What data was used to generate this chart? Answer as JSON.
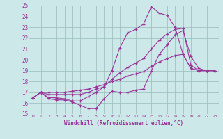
{
  "xlabel": "Windchill (Refroidissement éolien,°C)",
  "bg_color": "#cce8e8",
  "line_color": "#993399",
  "grid_color": "#99bbbb",
  "xlim": [
    -0.5,
    23.5
  ],
  "ylim": [
    15,
    25
  ],
  "yticks": [
    15,
    16,
    17,
    18,
    19,
    20,
    21,
    22,
    23,
    24,
    25
  ],
  "xticks": [
    0,
    1,
    2,
    3,
    4,
    5,
    6,
    7,
    8,
    9,
    10,
    11,
    12,
    13,
    14,
    15,
    16,
    17,
    18,
    19,
    20,
    21,
    22,
    23
  ],
  "line1_x": [
    0,
    1,
    2,
    3,
    4,
    5,
    6,
    7,
    8,
    9,
    10,
    11,
    12,
    13,
    14,
    15,
    16,
    17,
    18,
    19,
    20,
    21,
    22,
    23
  ],
  "line1_y": [
    16.5,
    17.0,
    16.4,
    16.3,
    16.3,
    16.1,
    15.8,
    15.5,
    15.5,
    16.4,
    17.1,
    17.0,
    17.0,
    17.2,
    17.3,
    19.0,
    20.5,
    21.4,
    22.3,
    22.7,
    20.3,
    19.2,
    19.0,
    19.0
  ],
  "line2_x": [
    0,
    1,
    2,
    3,
    4,
    5,
    6,
    7,
    8,
    9,
    10,
    11,
    12,
    13,
    14,
    15,
    16,
    17,
    18,
    19,
    20,
    21,
    22,
    23
  ],
  "line2_y": [
    16.5,
    17.0,
    16.5,
    16.5,
    16.4,
    16.2,
    16.2,
    16.6,
    17.0,
    17.5,
    19.0,
    21.1,
    22.5,
    22.8,
    23.3,
    24.9,
    24.3,
    24.1,
    23.0,
    20.5,
    19.2,
    19.0,
    19.0,
    19.0
  ],
  "line3_x": [
    0,
    1,
    2,
    3,
    4,
    5,
    6,
    7,
    8,
    9,
    10,
    11,
    12,
    13,
    14,
    15,
    16,
    17,
    18,
    19,
    20,
    21,
    22,
    23
  ],
  "line3_y": [
    16.5,
    17.0,
    16.8,
    16.8,
    16.8,
    16.8,
    16.8,
    17.0,
    17.3,
    17.5,
    18.2,
    18.8,
    19.3,
    19.7,
    20.1,
    21.0,
    21.8,
    22.4,
    22.8,
    22.9,
    19.5,
    19.0,
    19.0,
    19.0
  ],
  "line4_x": [
    0,
    1,
    2,
    3,
    4,
    5,
    6,
    7,
    8,
    9,
    10,
    11,
    12,
    13,
    14,
    15,
    16,
    17,
    18,
    19,
    20,
    21,
    22,
    23
  ],
  "line4_y": [
    16.5,
    17.0,
    17.0,
    17.0,
    17.0,
    17.1,
    17.2,
    17.3,
    17.5,
    17.7,
    18.0,
    18.2,
    18.5,
    18.7,
    18.9,
    19.4,
    19.8,
    20.1,
    20.4,
    20.5,
    19.2,
    19.0,
    19.0,
    19.0
  ]
}
